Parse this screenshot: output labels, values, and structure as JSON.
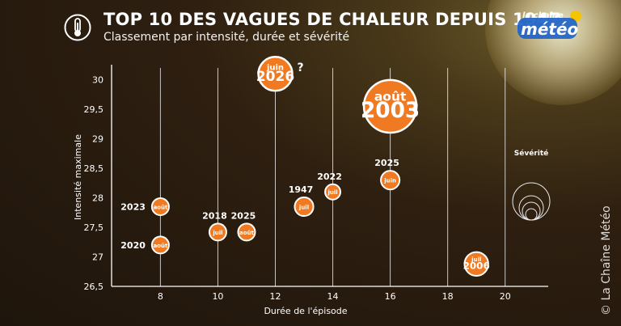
{
  "header": {
    "title": "TOP 10 DES VAGUES DE CHALEUR DEPUIS 1947",
    "subtitle": "Classement par intensité, durée et sévérité"
  },
  "logo": {
    "small": "la chaîne",
    "big": "météo"
  },
  "credit": "© La Chaîne Météo",
  "colors": {
    "bubble": "#f07a22",
    "bubble_border": "#ffffff",
    "grid": "#ffffff",
    "text": "#ffffff"
  },
  "chart_data": {
    "type": "scatter",
    "xlabel": "Durée de l'épisode",
    "ylabel": "Intensité maximale",
    "xlim": [
      6.3,
      21.5
    ],
    "ylim": [
      26.5,
      30.2
    ],
    "xticks": [
      "8",
      "10",
      "12",
      "14",
      "16",
      "18",
      "20"
    ],
    "yticks": [
      "26,5",
      "27",
      "27,5",
      "28",
      "28,5",
      "29",
      "29,5",
      "30"
    ],
    "grid": true,
    "points": [
      {
        "x": 8,
        "y": 27.85,
        "month": "août",
        "year": "2023",
        "size": 1,
        "year_pos": "left"
      },
      {
        "x": 8,
        "y": 27.2,
        "month": "août",
        "year": "2020",
        "size": 1,
        "year_pos": "left"
      },
      {
        "x": 10,
        "y": 27.42,
        "month": "juil",
        "year": "2018",
        "size": 1,
        "year_pos": "above"
      },
      {
        "x": 11,
        "y": 27.42,
        "month": "août",
        "year": "2025",
        "size": 1,
        "year_pos": "above"
      },
      {
        "x": 13,
        "y": 27.85,
        "month": "juil",
        "year": "1947",
        "size": 1.1,
        "year_pos": "above"
      },
      {
        "x": 14,
        "y": 28.1,
        "month": "juil",
        "year": "2022",
        "size": 0.9,
        "year_pos": "above"
      },
      {
        "x": 16,
        "y": 28.3,
        "month": "juin",
        "year": "2025",
        "size": 1.1,
        "year_pos": "above"
      },
      {
        "x": 12,
        "y": 30.1,
        "month": "juin",
        "year": "2026",
        "size": 2.0,
        "year_pos": "inside",
        "note": "?"
      },
      {
        "x": 16,
        "y": 29.55,
        "month": "août",
        "year": "2003",
        "size": 3.1,
        "year_pos": "inside"
      },
      {
        "x": 19,
        "y": 26.88,
        "month": "juil",
        "year": "2006",
        "size": 1.4,
        "year_pos": "inside"
      }
    ],
    "legend": {
      "title": "Sévérité",
      "position": "right"
    }
  }
}
